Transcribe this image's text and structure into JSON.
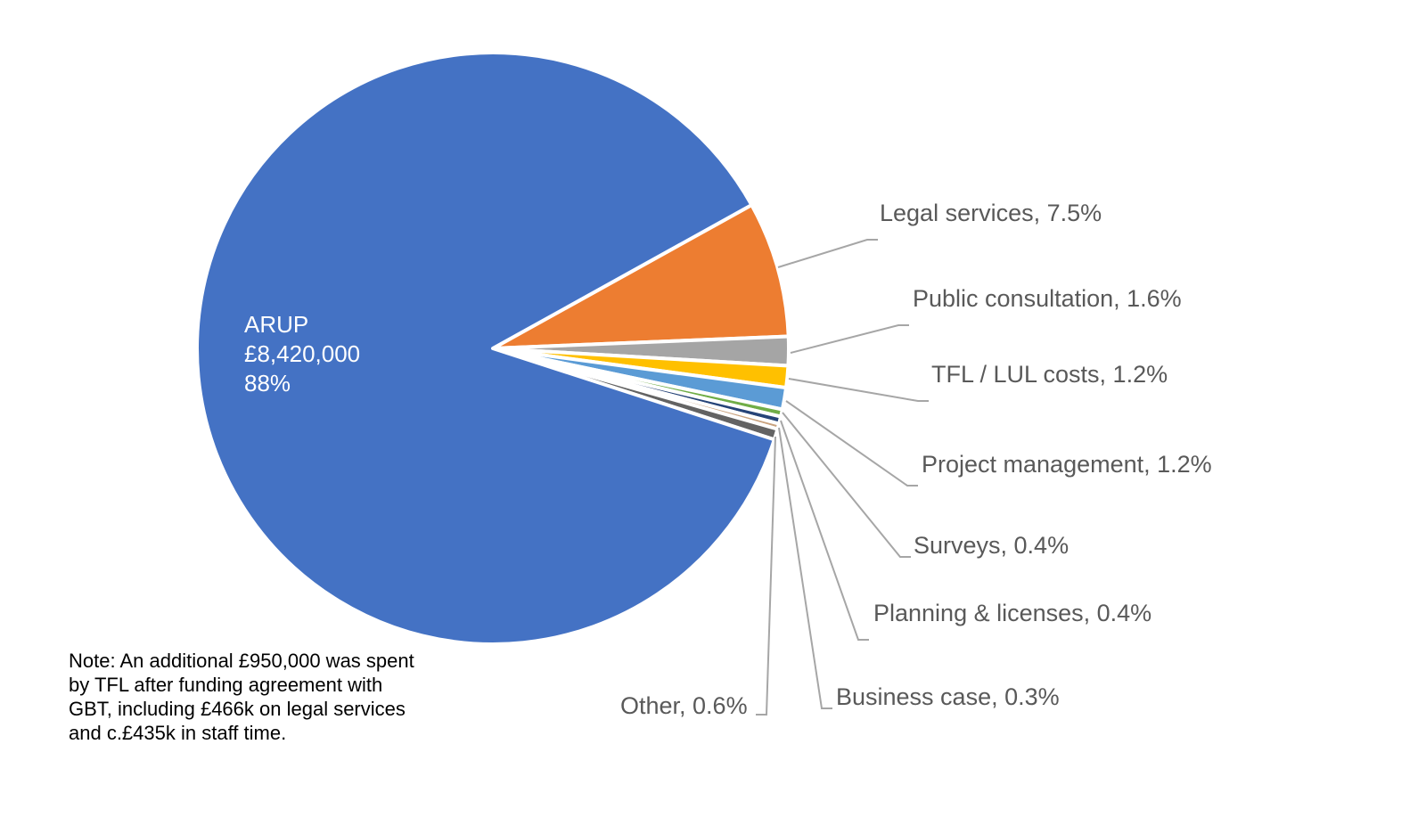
{
  "chart_data": {
    "type": "pie",
    "slices": [
      {
        "label": "ARUP",
        "amount": "£8,420,000",
        "percent": 88,
        "percent_label": "88%",
        "color": "#4472C4"
      },
      {
        "label": "Legal services",
        "percent": 7.5,
        "percent_label": "7.5%",
        "color": "#ED7D31"
      },
      {
        "label": "Public consultation",
        "percent": 1.6,
        "percent_label": "1.6%",
        "color": "#A5A5A5"
      },
      {
        "label": "TFL / LUL costs",
        "percent": 1.2,
        "percent_label": "1.2%",
        "color": "#FFC000"
      },
      {
        "label": "Project management",
        "percent": 1.2,
        "percent_label": "1.2%",
        "color": "#5B9BD5"
      },
      {
        "label": "Surveys",
        "percent": 0.4,
        "percent_label": "0.4%",
        "color": "#70AD47"
      },
      {
        "label": "Planning & licenses",
        "percent": 0.4,
        "percent_label": "0.4%",
        "color": "#264478"
      },
      {
        "label": "Business case",
        "percent": 0.3,
        "percent_label": "0.3%",
        "color": "#C9A27E"
      },
      {
        "label": "Other",
        "percent": 0.6,
        "percent_label": "0.6%",
        "color": "#636363"
      }
    ],
    "labels": {
      "legal": "Legal services, 7.5%",
      "public": "Public consultation, 1.6%",
      "tfl": "TFL / LUL costs, 1.2%",
      "pm": "Project management, 1.2%",
      "surveys": "Surveys, 0.4%",
      "planning": "Planning & licenses, 0.4%",
      "business": "Business case, 0.3%",
      "other": "Other, 0.6%"
    },
    "note": "Note: An additional £950,000 was spent by TFL after funding agreement with GBT, including £466k on legal services and c.£435k in staff time."
  }
}
